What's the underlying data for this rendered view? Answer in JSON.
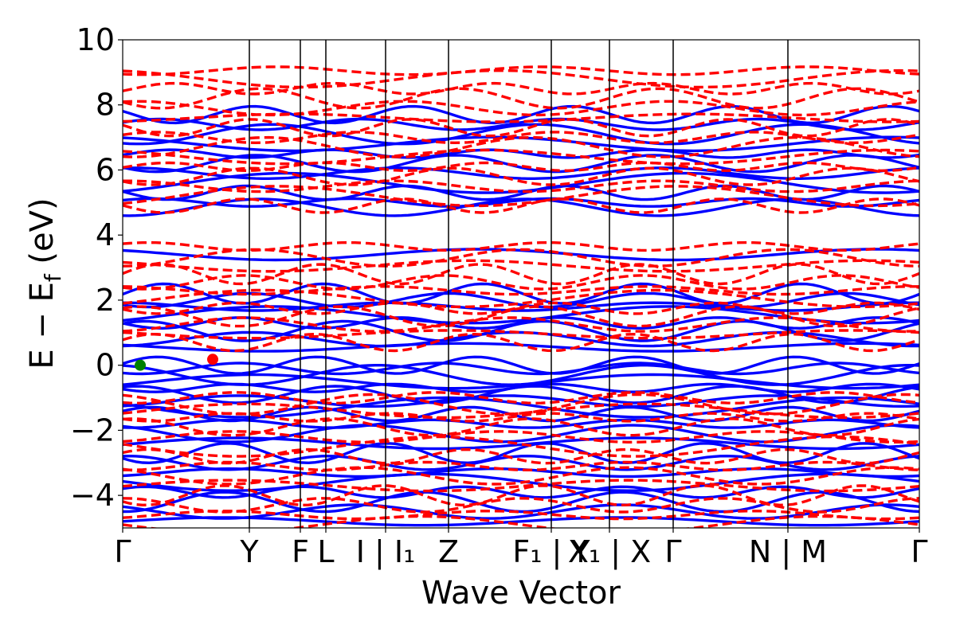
{
  "chart_data": {
    "type": "line",
    "title": "",
    "xlabel": "Wave Vector",
    "ylabel_main": "E − E",
    "ylabel_sub": "f",
    "ylabel_unit": " (eV)",
    "ylim": [
      -5,
      10
    ],
    "yticks": [
      {
        "value": 10,
        "label": "10"
      },
      {
        "value": 8,
        "label": "8"
      },
      {
        "value": 6,
        "label": "6"
      },
      {
        "value": 4,
        "label": "4"
      },
      {
        "value": 2,
        "label": "2"
      },
      {
        "value": 0,
        "label": "0"
      },
      {
        "value": -2,
        "label": "−2"
      },
      {
        "value": -4,
        "label": "−4"
      }
    ],
    "xlim": [
      0,
      1
    ],
    "kpath": [
      {
        "x": 0.0,
        "label": "Γ"
      },
      {
        "x": 0.159,
        "label": "Y"
      },
      {
        "x": 0.223,
        "label": "F"
      },
      {
        "x": 0.255,
        "label": "L"
      },
      {
        "x": 0.33,
        "label": "I | I₁"
      },
      {
        "x": 0.409,
        "label": "Z"
      },
      {
        "x": 0.538,
        "label": "F₁ | Y"
      },
      {
        "x": 0.611,
        "label": "X₁ | X"
      },
      {
        "x": 0.691,
        "label": "Γ"
      },
      {
        "x": 0.835,
        "label": "N | M"
      },
      {
        "x": 1.0,
        "label": "Γ"
      }
    ],
    "series": [
      {
        "style": "solid",
        "color": "#0000ff",
        "bands": [
          -4.8,
          -4.5,
          -4.2,
          -3.9,
          -3.6,
          -3.3,
          -3.0,
          -2.7,
          -2.4,
          -2.1,
          -1.8,
          -1.5,
          -1.3,
          -1.1,
          -0.9,
          -0.7,
          -0.5,
          -0.3,
          -0.1,
          0.0,
          0.55,
          0.8,
          1.05,
          1.3,
          1.55,
          1.8,
          2.0,
          2.2,
          3.4,
          4.85,
          5.0,
          5.3,
          5.6,
          5.9,
          6.2,
          6.5,
          6.8,
          7.1,
          7.4,
          7.7
        ]
      },
      {
        "style": "dashed",
        "color": "#ff0000",
        "bands": [
          -4.9,
          -4.6,
          -4.3,
          -4.0,
          -3.7,
          -3.4,
          -3.1,
          -2.8,
          -2.5,
          -2.2,
          -1.9,
          -1.6,
          -1.4,
          -1.2,
          -1.0,
          0.7,
          0.95,
          1.25,
          1.5,
          1.75,
          2.05,
          2.3,
          2.55,
          2.8,
          3.05,
          3.3,
          3.65,
          4.9,
          5.2,
          5.5,
          5.8,
          6.1,
          6.4,
          6.7,
          7.0,
          7.3,
          7.6,
          7.9,
          8.2,
          8.5,
          8.8,
          9.05
        ]
      }
    ],
    "markers": [
      {
        "name": "vbm",
        "x": 0.022,
        "y": 0.0,
        "color": "#008000"
      },
      {
        "name": "cbm",
        "x": 0.113,
        "y": 0.18,
        "color": "#ff0000"
      }
    ],
    "grid": false,
    "legend": "none"
  }
}
